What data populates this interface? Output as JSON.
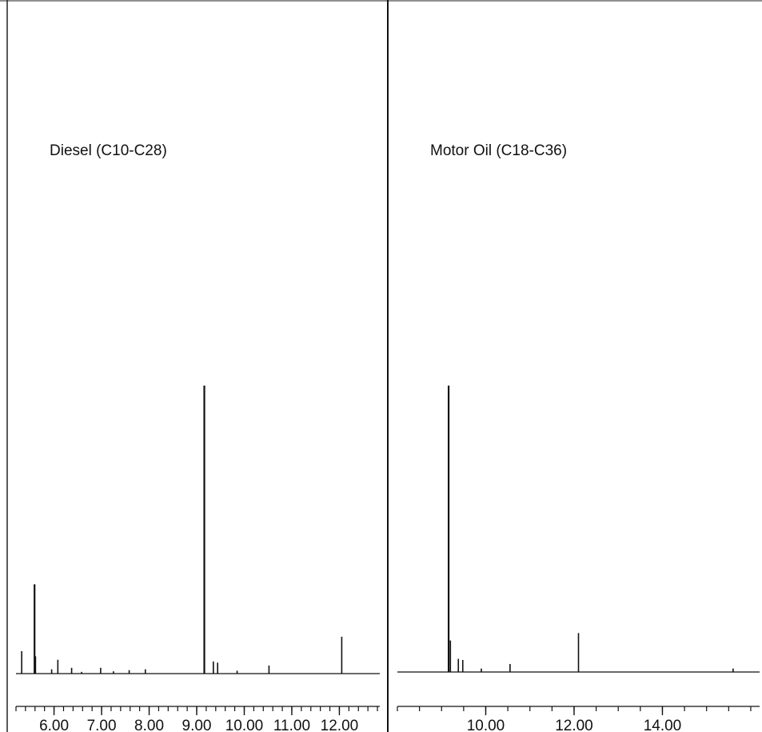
{
  "chart_data": [
    {
      "type": "line",
      "title": "Diesel (C10-C28)",
      "xlabel": "",
      "ylabel": "",
      "xlim": [
        5.2,
        12.85
      ],
      "ylim": [
        0,
        100
      ],
      "grid": false,
      "xticks": [
        {
          "value": 6.0,
          "label": "6.00"
        },
        {
          "value": 7.0,
          "label": "7.00"
        },
        {
          "value": 8.0,
          "label": "8.00"
        },
        {
          "value": 9.0,
          "label": "9.00"
        },
        {
          "value": 10.0,
          "label": "10.00"
        },
        {
          "value": 11.0,
          "label": "11.00"
        },
        {
          "value": 12.0,
          "label": "12.00"
        }
      ],
      "minor_step": 0.2,
      "baseline": 0.0,
      "series": [
        {
          "peaks": [
            {
              "x": 5.32,
              "y": 7.8
            },
            {
              "x": 5.59,
              "y": 31.0
            },
            {
              "x": 5.61,
              "y": 6.0
            },
            {
              "x": 5.95,
              "y": 1.5
            },
            {
              "x": 6.08,
              "y": 4.8
            },
            {
              "x": 6.37,
              "y": 2.0
            },
            {
              "x": 6.58,
              "y": 0.6
            },
            {
              "x": 6.98,
              "y": 2.0
            },
            {
              "x": 7.25,
              "y": 0.8
            },
            {
              "x": 7.58,
              "y": 1.2
            },
            {
              "x": 7.92,
              "y": 1.5
            },
            {
              "x": 9.16,
              "y": 100.0
            },
            {
              "x": 9.35,
              "y": 4.2
            },
            {
              "x": 9.44,
              "y": 3.8
            },
            {
              "x": 9.85,
              "y": 1.0
            },
            {
              "x": 10.52,
              "y": 2.8
            },
            {
              "x": 12.05,
              "y": 12.8
            }
          ]
        }
      ]
    },
    {
      "type": "line",
      "title": "Motor Oil (C18-C36)",
      "xlabel": "",
      "ylabel": "",
      "xlim": [
        8.0,
        16.2
      ],
      "ylim": [
        0,
        100
      ],
      "grid": false,
      "xticks": [
        {
          "value": 10.0,
          "label": "10.00"
        },
        {
          "value": 12.0,
          "label": "12.00"
        },
        {
          "value": 14.0,
          "label": "14.00"
        }
      ],
      "minor_step": 0.5,
      "baseline": 0.0,
      "series": [
        {
          "peaks": [
            {
              "x": 9.16,
              "y": 100.0
            },
            {
              "x": 9.2,
              "y": 11.0
            },
            {
              "x": 9.38,
              "y": 4.6
            },
            {
              "x": 9.48,
              "y": 4.2
            },
            {
              "x": 9.9,
              "y": 1.2
            },
            {
              "x": 10.55,
              "y": 2.8
            },
            {
              "x": 12.1,
              "y": 13.6
            },
            {
              "x": 15.6,
              "y": 1.2
            }
          ]
        }
      ]
    }
  ]
}
